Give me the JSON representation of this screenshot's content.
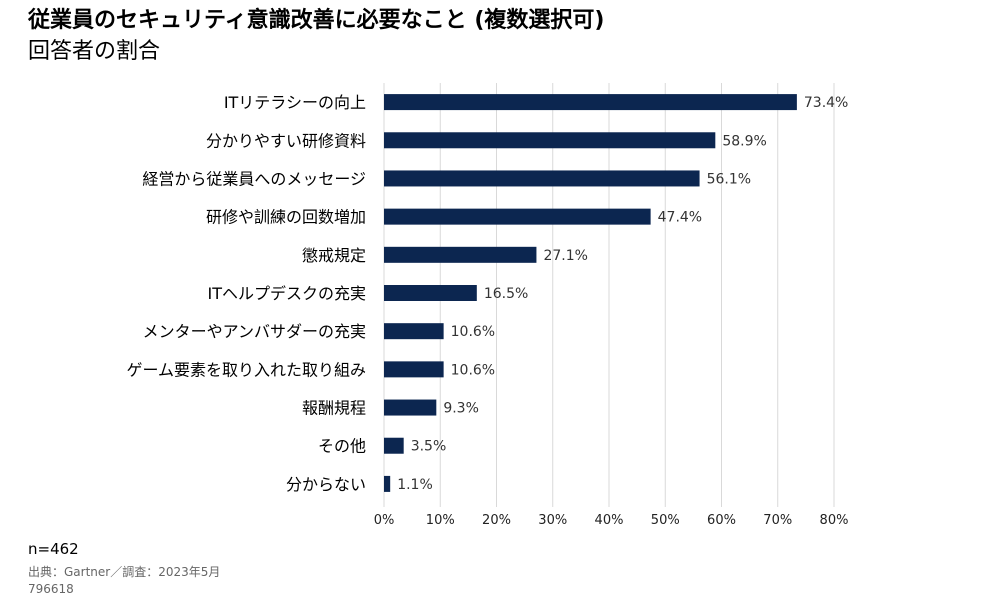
{
  "header": {
    "title": "従業員のセキュリティ意識改善に必要なこと (複数選択可)",
    "subtitle": "回答者の割合"
  },
  "chart_data": {
    "type": "bar",
    "orientation": "horizontal",
    "categories": [
      "ITリテラシーの向上",
      "分かりやすい研修資料",
      "経営から従業員へのメッセージ",
      "研修や訓練の回数増加",
      "懲戒規定",
      "ITヘルプデスクの充実",
      "メンターやアンバサダーの充実",
      "ゲーム要素を取り入れた取り組み",
      "報酬規程",
      "その他",
      "分からない"
    ],
    "values": [
      73.4,
      58.9,
      56.1,
      47.4,
      27.1,
      16.5,
      10.6,
      10.6,
      9.3,
      3.5,
      1.1
    ],
    "value_labels": [
      "73.4%",
      "58.9%",
      "56.1%",
      "47.4%",
      "27.1%",
      "16.5%",
      "10.6%",
      "10.6%",
      "9.3%",
      "3.5%",
      "1.1%"
    ],
    "xlim": [
      0,
      80
    ],
    "xticks": [
      0,
      10,
      20,
      30,
      40,
      50,
      60,
      70,
      80
    ],
    "xtick_labels": [
      "0%",
      "10%",
      "20%",
      "30%",
      "40%",
      "50%",
      "60%",
      "70%",
      "80%"
    ],
    "grid": "vertical",
    "bar_color": "#0c2650"
  },
  "footer": {
    "sample": "n=462",
    "source": "出典：Gartner／調査：2023年5月",
    "id": "796618"
  }
}
